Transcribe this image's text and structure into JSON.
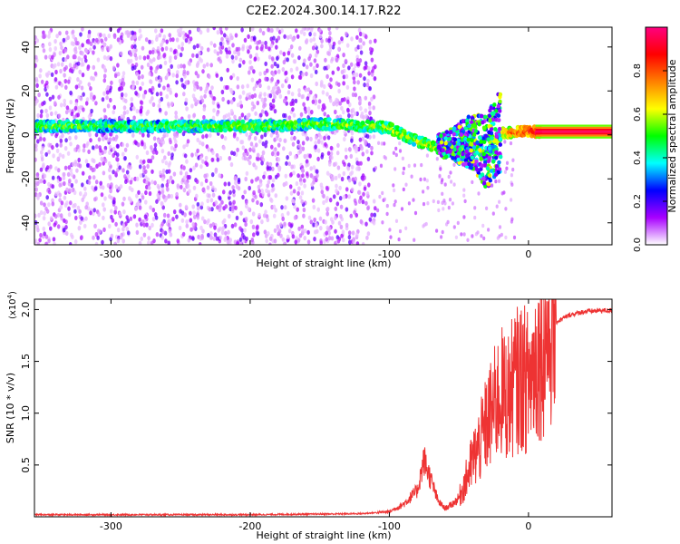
{
  "title": "C2E2.2024.300.14.17.R22",
  "chart_data": [
    {
      "type": "heatmap",
      "name": "spectrogram",
      "xlabel": "Height of straight line (km)",
      "ylabel": "Frequency (Hz)",
      "xlim": [
        -355,
        60
      ],
      "ylim": [
        -50,
        49
      ],
      "xticks": [
        -300,
        -200,
        -100,
        0
      ],
      "yticks": [
        -40,
        -20,
        0,
        20,
        40
      ],
      "xtick_labels": [
        "-300",
        "-200",
        "-100",
        "0"
      ],
      "ytick_labels": [
        "-40",
        "-20",
        "0",
        "20",
        "40"
      ],
      "colorbar": {
        "label": "Normalized spectral amplitude",
        "range": [
          0,
          1
        ],
        "ticks": [
          0.0,
          0.2,
          0.4,
          0.6,
          0.8
        ],
        "tick_labels": [
          "0.0",
          "0.2",
          "0.4",
          "0.6",
          "0.8"
        ],
        "colors": [
          "#ffffff",
          "#a800ff",
          "#0000ff",
          "#00ffff",
          "#00ff00",
          "#ffff00",
          "#ff8000",
          "#ff0000",
          "#ff0080"
        ]
      },
      "ridge": [
        {
          "x": -355,
          "y": 4,
          "amp": 0.55
        },
        {
          "x": -300,
          "y": 4,
          "amp": 0.5
        },
        {
          "x": -250,
          "y": 4,
          "amp": 0.52
        },
        {
          "x": -200,
          "y": 4,
          "amp": 0.55
        },
        {
          "x": -150,
          "y": 5,
          "amp": 0.55
        },
        {
          "x": -115,
          "y": 4,
          "amp": 0.55
        },
        {
          "x": -100,
          "y": 3,
          "amp": 0.6
        },
        {
          "x": -80,
          "y": -3,
          "amp": 0.6
        },
        {
          "x": -60,
          "y": -7,
          "amp": 0.62
        },
        {
          "x": -40,
          "y": -5,
          "amp": 0.62
        },
        {
          "x": -30,
          "y": -10,
          "amp": 0.55
        },
        {
          "x": -20,
          "y": 1,
          "amp": 0.7
        },
        {
          "x": 0,
          "y": 1.5,
          "amp": 0.85
        },
        {
          "x": 10,
          "y": 1.5,
          "amp": 0.95
        },
        {
          "x": 60,
          "y": 1.5,
          "amp": 0.97
        }
      ]
    },
    {
      "type": "line",
      "name": "snr",
      "xlabel": "Height of straight line (km)",
      "ylabel": "SNR (10 * v/v)",
      "y_multiplier_label": "(x10",
      "y_multiplier_exponent": "4",
      "y_multiplier_close": ")",
      "xlim": [
        -355,
        60
      ],
      "ylim": [
        0,
        2.1
      ],
      "xticks": [
        -300,
        -200,
        -100,
        0
      ],
      "yticks": [
        0.5,
        1.0,
        1.5,
        2.0
      ],
      "xtick_labels": [
        "-300",
        "-200",
        "-100",
        "0"
      ],
      "ytick_labels": [
        "0.5",
        "1.0",
        "1.5",
        "2.0"
      ],
      "color": "#ee3333",
      "x": [
        -355,
        -300,
        -200,
        -120,
        -100,
        -90,
        -80,
        -75,
        -70,
        -65,
        -60,
        -55,
        -50,
        -45,
        -40,
        -35,
        -30,
        -25,
        -20,
        -15,
        -10,
        -5,
        0,
        5,
        10,
        15,
        20,
        30,
        40,
        50,
        60
      ],
      "y": [
        0.02,
        0.02,
        0.02,
        0.03,
        0.05,
        0.12,
        0.25,
        0.55,
        0.35,
        0.15,
        0.08,
        0.12,
        0.18,
        0.35,
        0.55,
        0.7,
        0.9,
        1.05,
        1.2,
        1.15,
        1.3,
        1.35,
        1.3,
        1.5,
        1.65,
        1.78,
        1.88,
        1.95,
        1.98,
        1.99,
        1.99
      ]
    }
  ]
}
